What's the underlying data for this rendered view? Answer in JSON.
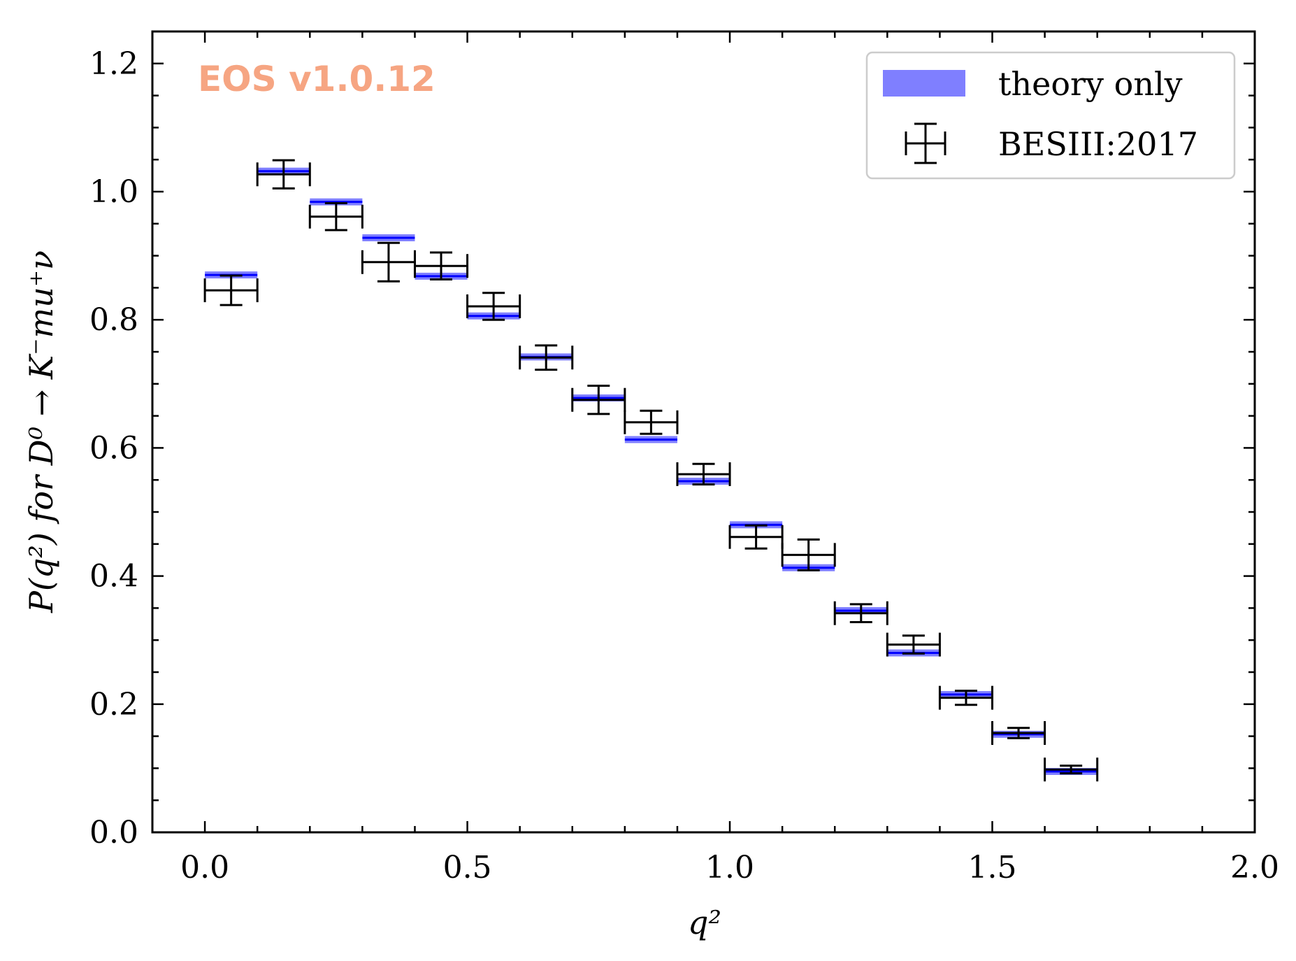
{
  "watermark": "EOS v1.0.12",
  "colors": {
    "watermark": "#f6a582",
    "theory": "#0000ff",
    "data": "#000000"
  },
  "chart_data": {
    "type": "errorbar",
    "xlabel": "q²",
    "ylabel": "P(q²) for D⁰ → K⁻mu⁺ν",
    "xlim": [
      -0.1,
      2.0
    ],
    "ylim": [
      0.0,
      1.25
    ],
    "xticks": [
      "0.0",
      "0.5",
      "1.0",
      "1.5",
      "2.0"
    ],
    "yticks": [
      "0.0",
      "0.2",
      "0.4",
      "0.6",
      "0.8",
      "1.0",
      "1.2"
    ],
    "xtick_values": [
      0.0,
      0.5,
      1.0,
      1.5,
      2.0
    ],
    "ytick_values": [
      0.0,
      0.2,
      0.4,
      0.6,
      0.8,
      1.0,
      1.2
    ],
    "legend": {
      "position": "top-right",
      "entries": [
        "theory only",
        "BESIII:2017"
      ]
    },
    "series": [
      {
        "name": "theory only",
        "style": "band",
        "bins": [
          {
            "x0": 0.0,
            "x1": 0.1,
            "y": 0.87
          },
          {
            "x0": 0.1,
            "x1": 0.2,
            "y": 1.032
          },
          {
            "x0": 0.2,
            "x1": 0.3,
            "y": 0.984
          },
          {
            "x0": 0.3,
            "x1": 0.4,
            "y": 0.928
          },
          {
            "x0": 0.4,
            "x1": 0.5,
            "y": 0.868
          },
          {
            "x0": 0.5,
            "x1": 0.6,
            "y": 0.806
          },
          {
            "x0": 0.6,
            "x1": 0.7,
            "y": 0.742
          },
          {
            "x0": 0.7,
            "x1": 0.8,
            "y": 0.678
          },
          {
            "x0": 0.8,
            "x1": 0.9,
            "y": 0.613
          },
          {
            "x0": 0.9,
            "x1": 1.0,
            "y": 0.548
          },
          {
            "x0": 1.0,
            "x1": 1.1,
            "y": 0.48
          },
          {
            "x0": 1.1,
            "x1": 1.2,
            "y": 0.413
          },
          {
            "x0": 1.2,
            "x1": 1.3,
            "y": 0.346
          },
          {
            "x0": 1.3,
            "x1": 1.4,
            "y": 0.28
          },
          {
            "x0": 1.4,
            "x1": 1.5,
            "y": 0.215
          },
          {
            "x0": 1.5,
            "x1": 1.6,
            "y": 0.153
          },
          {
            "x0": 1.6,
            "x1": 1.7,
            "y": 0.095
          }
        ]
      },
      {
        "name": "BESIII:2017",
        "style": "errorbar",
        "points": [
          {
            "x": 0.05,
            "xerr": 0.05,
            "y": 0.846,
            "yerr": 0.023
          },
          {
            "x": 0.15,
            "xerr": 0.05,
            "y": 1.027,
            "yerr": 0.022
          },
          {
            "x": 0.25,
            "xerr": 0.05,
            "y": 0.961,
            "yerr": 0.021
          },
          {
            "x": 0.35,
            "xerr": 0.05,
            "y": 0.89,
            "yerr": 0.03
          },
          {
            "x": 0.45,
            "xerr": 0.05,
            "y": 0.884,
            "yerr": 0.021
          },
          {
            "x": 0.55,
            "xerr": 0.05,
            "y": 0.821,
            "yerr": 0.021
          },
          {
            "x": 0.65,
            "xerr": 0.05,
            "y": 0.741,
            "yerr": 0.019
          },
          {
            "x": 0.75,
            "xerr": 0.05,
            "y": 0.675,
            "yerr": 0.022
          },
          {
            "x": 0.85,
            "xerr": 0.05,
            "y": 0.64,
            "yerr": 0.018
          },
          {
            "x": 0.95,
            "xerr": 0.05,
            "y": 0.559,
            "yerr": 0.016
          },
          {
            "x": 1.05,
            "xerr": 0.05,
            "y": 0.461,
            "yerr": 0.018
          },
          {
            "x": 1.15,
            "xerr": 0.05,
            "y": 0.433,
            "yerr": 0.024
          },
          {
            "x": 1.25,
            "xerr": 0.05,
            "y": 0.342,
            "yerr": 0.014
          },
          {
            "x": 1.35,
            "xerr": 0.05,
            "y": 0.293,
            "yerr": 0.014
          },
          {
            "x": 1.45,
            "xerr": 0.05,
            "y": 0.21,
            "yerr": 0.011
          },
          {
            "x": 1.55,
            "xerr": 0.05,
            "y": 0.155,
            "yerr": 0.008
          },
          {
            "x": 1.65,
            "xerr": 0.05,
            "y": 0.098,
            "yerr": 0.006
          }
        ]
      }
    ]
  }
}
